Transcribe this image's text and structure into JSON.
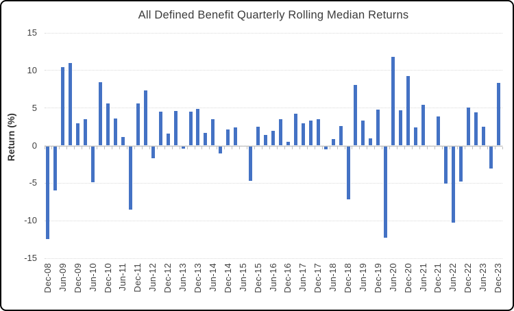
{
  "chart_data": {
    "type": "bar",
    "title": "All Defined Benefit Quarterly Rolling Median Returns",
    "ylabel": "Return (%)",
    "ylim": [
      -15,
      15
    ],
    "yticks": [
      15,
      10,
      5,
      0,
      -5,
      -10,
      -15
    ],
    "grid": true,
    "legend": false,
    "bar_color": "#4472C4",
    "gridline_color": "#D9D9D9",
    "axis_color": "#BFBFBF",
    "text_color": "#404040",
    "xtick_label_every": 2,
    "xtick_labels_visible": [
      "Dec-08",
      "Jun-09",
      "Dec-09",
      "Jun-10",
      "Dec-10",
      "Jun-11",
      "Dec-11",
      "Jun-12",
      "Dec-12",
      "Jun-13",
      "Dec-13",
      "Jun-14",
      "Dec-14",
      "Jun-15",
      "Dec-15",
      "Jun-16",
      "Dec-16",
      "Jun-17",
      "Dec-17",
      "Jun-18",
      "Dec-18",
      "Jun-19",
      "Dec-19",
      "Jun-20",
      "Dec-20",
      "Jun-21",
      "Dec-21",
      "Jun-22",
      "Dec-22",
      "Jun-23",
      "Dec-23"
    ],
    "categories": [
      "Dec-08",
      "Mar-09",
      "Jun-09",
      "Sep-09",
      "Dec-09",
      "Mar-10",
      "Jun-10",
      "Sep-10",
      "Dec-10",
      "Mar-11",
      "Jun-11",
      "Sep-11",
      "Dec-11",
      "Mar-12",
      "Jun-12",
      "Sep-12",
      "Dec-12",
      "Mar-13",
      "Jun-13",
      "Sep-13",
      "Dec-13",
      "Mar-14",
      "Jun-14",
      "Sep-14",
      "Dec-14",
      "Mar-15",
      "Jun-15",
      "Sep-15",
      "Dec-15",
      "Mar-16",
      "Jun-16",
      "Sep-16",
      "Dec-16",
      "Mar-17",
      "Jun-17",
      "Sep-17",
      "Dec-17",
      "Mar-18",
      "Jun-18",
      "Sep-18",
      "Dec-18",
      "Mar-19",
      "Jun-19",
      "Sep-19",
      "Dec-19",
      "Mar-20",
      "Jun-20",
      "Sep-20",
      "Dec-20",
      "Mar-21",
      "Jun-21",
      "Sep-21",
      "Dec-21",
      "Mar-22",
      "Jun-22",
      "Sep-22",
      "Dec-22",
      "Mar-23",
      "Jun-23",
      "Sep-23",
      "Dec-23"
    ],
    "values": [
      -12.4,
      -5.9,
      10.4,
      11.0,
      3.0,
      3.5,
      -4.8,
      8.4,
      5.6,
      3.6,
      1.1,
      -8.4,
      5.6,
      7.3,
      -1.6,
      4.5,
      1.6,
      4.6,
      -0.3,
      4.5,
      4.9,
      1.7,
      3.5,
      -1.0,
      2.1,
      2.4,
      0.0,
      -4.6,
      2.5,
      1.4,
      2.0,
      3.5,
      0.5,
      4.2,
      3.0,
      3.3,
      3.5,
      -0.4,
      0.9,
      2.6,
      -7.1,
      8.1,
      3.3,
      1.0,
      4.8,
      -12.2,
      11.8,
      4.7,
      9.3,
      2.4,
      5.4,
      0.0,
      3.9,
      -5.0,
      -10.2,
      -4.7,
      5.1,
      4.4,
      2.5,
      -3.0,
      8.3
    ]
  }
}
